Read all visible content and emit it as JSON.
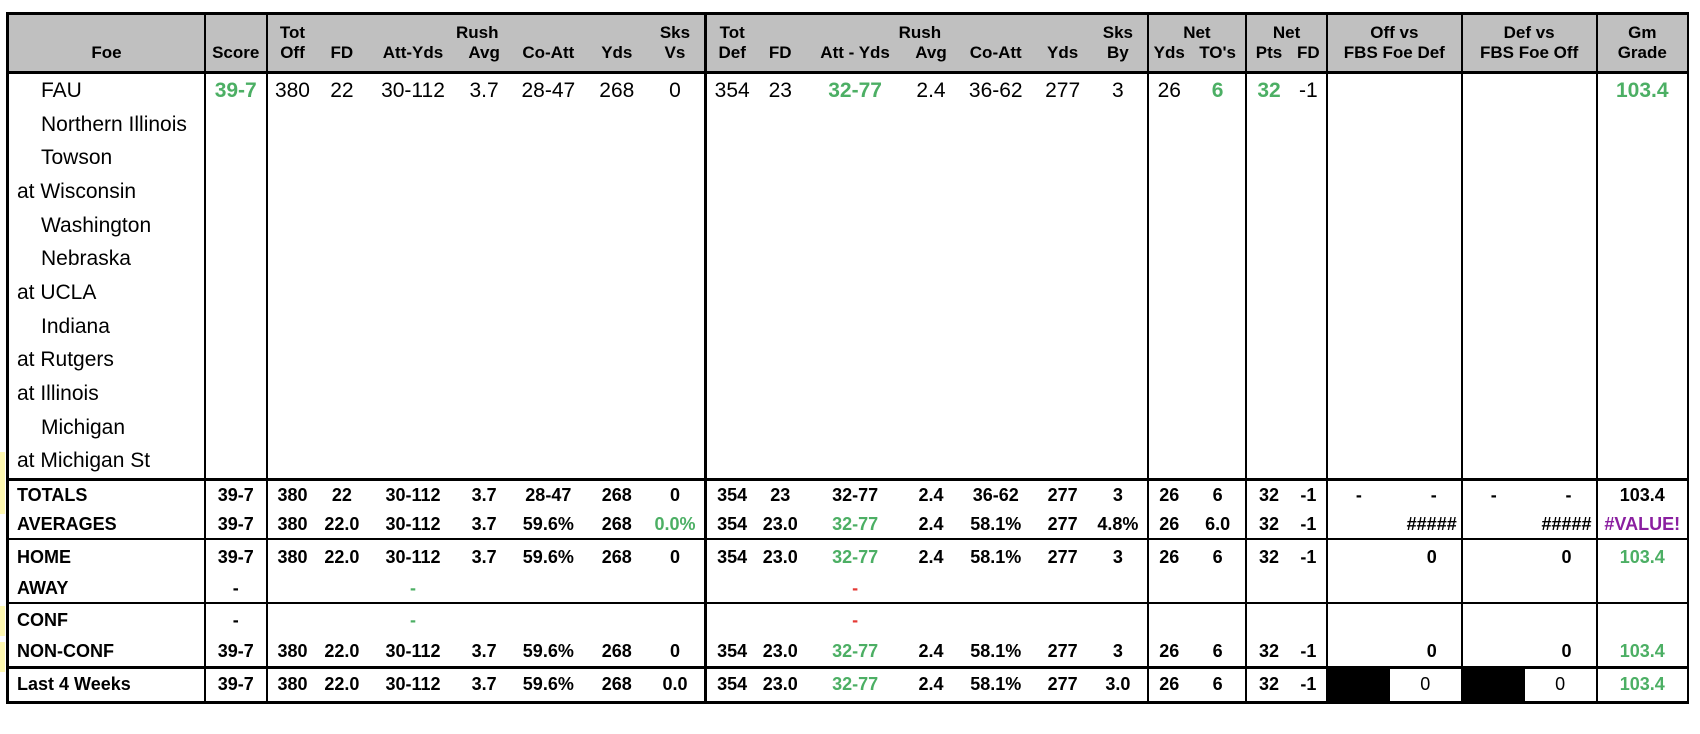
{
  "header": {
    "foe": "Foe",
    "score": "Score",
    "tot_off_1": "Tot",
    "tot_off_2": "Off",
    "fd": "FD",
    "rush_1": "Rush",
    "rush_off_2": "Att-Yds",
    "avg": "Avg",
    "co_att": "Co-Att",
    "yds": "Yds",
    "sks_1": "Sks",
    "sks_vs_2": "Vs",
    "tot_def_1": "Tot",
    "tot_def_2": "Def",
    "rush_def_2": "Att - Yds",
    "sks_by_2": "By",
    "net_1": "Net",
    "net_yds_2": "Yds",
    "net_tos_2": "TO's",
    "net_pts_2": "Pts",
    "net_fd_2": "FD",
    "off_vs_1": "Off vs",
    "off_vs_2": "FBS Foe Def",
    "def_vs_1": "Def vs",
    "def_vs_2": "FBS Foe Off",
    "gm_1": "Gm",
    "gm_2": "Grade"
  },
  "games": [
    {
      "foe": "FAU",
      "home": true,
      "score": "39-7",
      "tot_off": "380",
      "fd": "22",
      "rush_off": "30-112",
      "avg_off": "3.7",
      "co_att_off": "28-47",
      "yds_off": "268",
      "sks_vs": "0",
      "tot_def": "354",
      "fd_def": "23",
      "rush_def": "32-77",
      "avg_def": "2.4",
      "co_att_def": "36-62",
      "yds_def": "277",
      "sks_by": "3",
      "net_yds": "26",
      "net_tos": "6",
      "net_pts": "32",
      "net_fd": "-1",
      "grade": "103.4"
    },
    {
      "foe": "Northern Illinois",
      "home": true
    },
    {
      "foe": "Towson",
      "home": true
    },
    {
      "foe": "at Wisconsin",
      "home": false
    },
    {
      "foe": "Washington",
      "home": true
    },
    {
      "foe": "Nebraska",
      "home": true
    },
    {
      "foe": "at UCLA",
      "home": false
    },
    {
      "foe": "Indiana",
      "home": true
    },
    {
      "foe": "at Rutgers",
      "home": false
    },
    {
      "foe": "at Illinois",
      "home": false
    },
    {
      "foe": "Michigan",
      "home": true
    },
    {
      "foe": "at Michigan St",
      "home": false
    }
  ],
  "summary": {
    "totals": {
      "label": "TOTALS",
      "score": "39-7",
      "tot_off": "380",
      "fd": "22",
      "rush_off": "30-112",
      "avg_off": "3.7",
      "co_att_off": "28-47",
      "yds_off": "268",
      "sks_vs": "0",
      "tot_def": "354",
      "fd_def": "23",
      "rush_def": "32-77",
      "avg_def": "2.4",
      "co_att_def": "36-62",
      "yds_def": "277",
      "sks_by": "3",
      "net_yds": "26",
      "net_tos": "6",
      "net_pts": "32",
      "net_fd": "-1",
      "off_a": "-",
      "off_b": "-",
      "def_a": "-",
      "def_b": "-",
      "grade": "103.4"
    },
    "averages": {
      "label": "AVERAGES",
      "score": "39-7",
      "tot_off": "380",
      "fd": "22.0",
      "rush_off": "30-112",
      "avg_off": "3.7",
      "co_att_off": "59.6%",
      "yds_off": "268",
      "sks_vs": "0.0%",
      "tot_def": "354",
      "fd_def": "23.0",
      "rush_def": "32-77",
      "avg_def": "2.4",
      "co_att_def": "58.1%",
      "yds_def": "277",
      "sks_by": "4.8%",
      "net_yds": "26",
      "net_tos": "6.0",
      "net_pts": "32",
      "net_fd": "-1",
      "off_vs": "#####",
      "def_vs": "#####",
      "grade": "#VALUE!"
    },
    "home": {
      "label": "HOME",
      "score": "39-7",
      "tot_off": "380",
      "fd": "22.0",
      "rush_off": "30-112",
      "avg_off": "3.7",
      "co_att_off": "59.6%",
      "yds_off": "268",
      "sks_vs": "0",
      "tot_def": "354",
      "fd_def": "23.0",
      "rush_def": "32-77",
      "avg_def": "2.4",
      "co_att_def": "58.1%",
      "yds_def": "277",
      "sks_by": "3",
      "net_yds": "26",
      "net_tos": "6",
      "net_pts": "32",
      "net_fd": "-1",
      "off_vs": "0",
      "def_vs": "0",
      "grade": "103.4"
    },
    "away": {
      "label": "AWAY",
      "score": "-",
      "rush_off": "-",
      "rush_def": "-"
    },
    "conf": {
      "label": "CONF",
      "score": "-",
      "rush_off": "-",
      "rush_def": "-"
    },
    "nonconf": {
      "label": "NON-CONF",
      "score": "39-7",
      "tot_off": "380",
      "fd": "22.0",
      "rush_off": "30-112",
      "avg_off": "3.7",
      "co_att_off": "59.6%",
      "yds_off": "268",
      "sks_vs": "0",
      "tot_def": "354",
      "fd_def": "23.0",
      "rush_def": "32-77",
      "avg_def": "2.4",
      "co_att_def": "58.1%",
      "yds_def": "277",
      "sks_by": "3",
      "net_yds": "26",
      "net_tos": "6",
      "net_pts": "32",
      "net_fd": "-1",
      "off_vs": "0",
      "def_vs": "0",
      "grade": "103.4"
    },
    "last4": {
      "label": "Last 4 Weeks",
      "score": "39-7",
      "tot_off": "380",
      "fd": "22.0",
      "rush_off": "30-112",
      "avg_off": "3.7",
      "co_att_off": "59.6%",
      "yds_off": "268",
      "sks_vs": "0.0",
      "tot_def": "354",
      "fd_def": "23.0",
      "rush_def": "32-77",
      "avg_def": "2.4",
      "co_att_def": "58.1%",
      "yds_def": "277",
      "sks_by": "3.0",
      "net_yds": "26",
      "net_tos": "6",
      "net_pts": "32",
      "net_fd": "-1",
      "off_vs": "0",
      "def_vs": "0",
      "grade": "103.4"
    }
  },
  "colors": {
    "positive": "#4caf64",
    "negative": "#e53935",
    "error": "#8a1fa0",
    "header_bg": "#c0c0c0"
  }
}
